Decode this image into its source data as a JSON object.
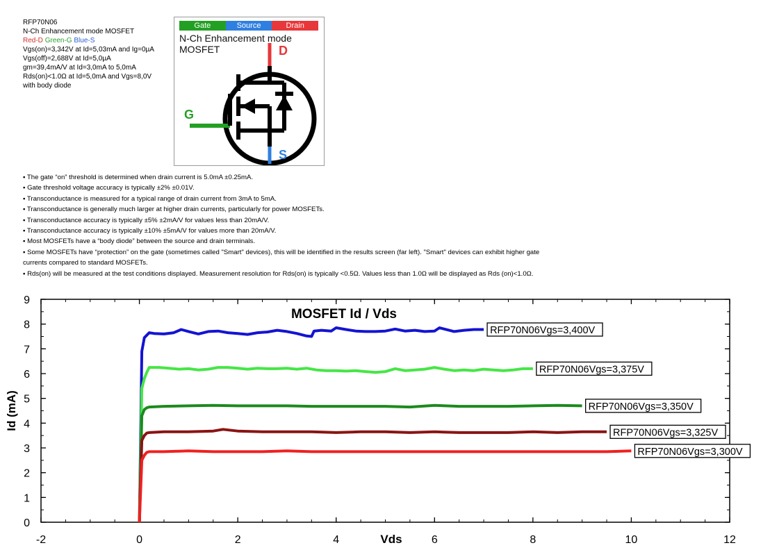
{
  "header": {
    "part": "RFP70N06",
    "type_line": "N-Ch Enhancement mode MOSFET",
    "pin_key": {
      "red": "Red-D",
      "green": "Green-G",
      "blue": "Blue-S"
    },
    "specs": [
      "Vgs(on)=3,342V at Id=5,03mA and Ig=0µA",
      "Vgs(off)=2,688V at Id=5,0µA",
      "gm=39,4mA/V at Id=3,0mA to 5,0mA",
      "Rds(on)<1.0Ω at Id=5,0mA and Vgs=8,0V",
      "with body diode"
    ]
  },
  "symbol": {
    "tabs": [
      {
        "label": "Gate",
        "color": "#23a023"
      },
      {
        "label": "Source",
        "color": "#2f7fe0"
      },
      {
        "label": "Drain",
        "color": "#e8373a"
      }
    ],
    "title_line1": "N-Ch Enhancement mode",
    "title_line2": "MOSFET",
    "gate_letter": "G",
    "drain_letter": "D",
    "source_letter": "S",
    "colors": {
      "gate": "#23a023",
      "source": "#2f7fe0",
      "drain": "#e8373a"
    }
  },
  "notes": [
    "▪ The gate “on” threshold is determined when drain current is 5.0mA ±0.25mA.",
    "▪ Gate threshold voltage accuracy is typically ±2% ±0.01V.",
    "▪ Transconductance is measured for a typical range of drain current from 3mA to 5mA.",
    "▪ Transconductance is generally much larger at higher drain currents, particularly for power MOSFETs.",
    "▪ Transconductance accuracy is typically ±5% ±2mA/V for values less than 20mA/V.",
    "▪ Transconductance accuracy is typically ±10% ±5mA/V for values more than 20mA/V.",
    "▪ Most MOSFETs have a “body diode” between the source and drain terminals.",
    "▪ Some MOSFETs have “protection” on the gate (sometimes called \"Smart\" devices), this will be identified in the results screen (far left). \"Smart\" devices can exhibit higher gate currents compared to standard MOSFETs.",
    "▪ Rds(on) will be measured at the test conditions displayed. Measurement resolution for Rds(on) is typically <0.5Ω. Values less than 1.0Ω will be displayed as Rds (on)<1.0Ω."
  ],
  "chart_data": {
    "type": "line",
    "title": "MOSFET Id / Vds",
    "xlabel": "Vds",
    "ylabel": "Id (mA)",
    "xlim": [
      -2,
      12
    ],
    "ylim": [
      0,
      9
    ],
    "xticks": [
      -2,
      0,
      2,
      4,
      6,
      8,
      10,
      12
    ],
    "yticks": [
      0,
      1,
      2,
      3,
      4,
      5,
      6,
      7,
      8,
      9
    ],
    "grid": false,
    "series": [
      {
        "name": "RFP70N06Vgs=3,400V",
        "color": "#1414d2",
        "x": [
          0,
          0.05,
          0.1,
          0.15,
          0.2,
          0.3,
          0.5,
          0.7,
          0.85,
          1.0,
          1.2,
          1.4,
          1.6,
          1.8,
          2.0,
          2.2,
          2.4,
          2.6,
          2.8,
          3.0,
          3.2,
          3.4,
          3.5,
          3.55,
          3.7,
          3.9,
          4.0,
          4.2,
          4.4,
          4.6,
          4.8,
          5.0,
          5.2,
          5.4,
          5.6,
          5.8,
          6.0,
          6.1,
          6.2,
          6.4,
          6.6,
          6.8,
          7.0
        ],
        "y": [
          0,
          6.9,
          7.45,
          7.55,
          7.65,
          7.62,
          7.6,
          7.65,
          7.78,
          7.7,
          7.6,
          7.7,
          7.72,
          7.65,
          7.62,
          7.58,
          7.65,
          7.68,
          7.75,
          7.7,
          7.62,
          7.52,
          7.5,
          7.72,
          7.75,
          7.72,
          7.85,
          7.78,
          7.72,
          7.7,
          7.7,
          7.72,
          7.8,
          7.72,
          7.75,
          7.7,
          7.72,
          7.85,
          7.8,
          7.7,
          7.75,
          7.78,
          7.78
        ]
      },
      {
        "name": "RFP70N06Vgs=3,375V",
        "color": "#46e646",
        "x": [
          0,
          0.05,
          0.1,
          0.15,
          0.2,
          0.4,
          0.6,
          0.8,
          1.0,
          1.2,
          1.4,
          1.6,
          1.8,
          2.0,
          2.2,
          2.4,
          2.6,
          2.8,
          3.0,
          3.2,
          3.4,
          3.6,
          3.8,
          4.0,
          4.2,
          4.4,
          4.6,
          4.8,
          5.0,
          5.2,
          5.4,
          5.6,
          5.8,
          6.0,
          6.2,
          6.4,
          6.6,
          6.8,
          7.0,
          7.2,
          7.4,
          7.6,
          7.8,
          8.0
        ],
        "y": [
          0,
          5.4,
          5.8,
          6.05,
          6.25,
          6.25,
          6.22,
          6.18,
          6.2,
          6.15,
          6.18,
          6.25,
          6.25,
          6.22,
          6.18,
          6.22,
          6.2,
          6.2,
          6.22,
          6.18,
          6.22,
          6.15,
          6.12,
          6.12,
          6.1,
          6.12,
          6.08,
          6.05,
          6.08,
          6.2,
          6.12,
          6.15,
          6.18,
          6.25,
          6.18,
          6.12,
          6.15,
          6.12,
          6.18,
          6.15,
          6.12,
          6.15,
          6.2,
          6.2
        ]
      },
      {
        "name": "RFP70N06Vgs=3,350V",
        "color": "#1c8a1c",
        "x": [
          0,
          0.05,
          0.1,
          0.15,
          0.2,
          0.5,
          1.0,
          1.5,
          2.0,
          2.5,
          3.0,
          3.5,
          4.0,
          4.5,
          5.0,
          5.5,
          6.0,
          6.5,
          7.0,
          7.5,
          8.0,
          8.5,
          9.0
        ],
        "y": [
          0,
          4.3,
          4.55,
          4.62,
          4.65,
          4.68,
          4.7,
          4.72,
          4.7,
          4.7,
          4.7,
          4.68,
          4.68,
          4.68,
          4.68,
          4.65,
          4.72,
          4.68,
          4.68,
          4.68,
          4.7,
          4.72,
          4.7
        ]
      },
      {
        "name": "RFP70N06Vgs=3,325V",
        "color": "#8a1414",
        "x": [
          0,
          0.05,
          0.1,
          0.15,
          0.2,
          0.5,
          1.0,
          1.5,
          1.7,
          2.0,
          2.5,
          3.0,
          3.5,
          4.0,
          4.5,
          5.0,
          5.5,
          6.0,
          6.5,
          7.0,
          7.5,
          8.0,
          8.5,
          9.0,
          9.5
        ],
        "y": [
          0,
          3.3,
          3.5,
          3.6,
          3.62,
          3.65,
          3.65,
          3.68,
          3.75,
          3.68,
          3.65,
          3.65,
          3.65,
          3.62,
          3.65,
          3.65,
          3.62,
          3.65,
          3.62,
          3.62,
          3.62,
          3.65,
          3.62,
          3.65,
          3.65
        ]
      },
      {
        "name": "RFP70N06Vgs=3,300V",
        "color": "#f02020",
        "x": [
          0,
          0.05,
          0.1,
          0.15,
          0.2,
          0.5,
          1.0,
          1.5,
          2.0,
          2.5,
          3.0,
          3.5,
          4.0,
          4.5,
          5.0,
          5.5,
          6.0,
          6.5,
          7.0,
          7.5,
          8.0,
          8.5,
          9.0,
          9.5,
          10.0
        ],
        "y": [
          0,
          2.5,
          2.7,
          2.82,
          2.85,
          2.85,
          2.88,
          2.85,
          2.85,
          2.85,
          2.88,
          2.85,
          2.85,
          2.85,
          2.85,
          2.85,
          2.85,
          2.85,
          2.85,
          2.85,
          2.85,
          2.85,
          2.85,
          2.85,
          2.88
        ]
      }
    ],
    "annotations": [
      "RFP70N06Vgs=3,400V",
      "RFP70N06Vgs=3,375V",
      "RFP70N06Vgs=3,350V",
      "RFP70N06Vgs=3,325V",
      "RFP70N06Vgs=3,300V"
    ]
  }
}
